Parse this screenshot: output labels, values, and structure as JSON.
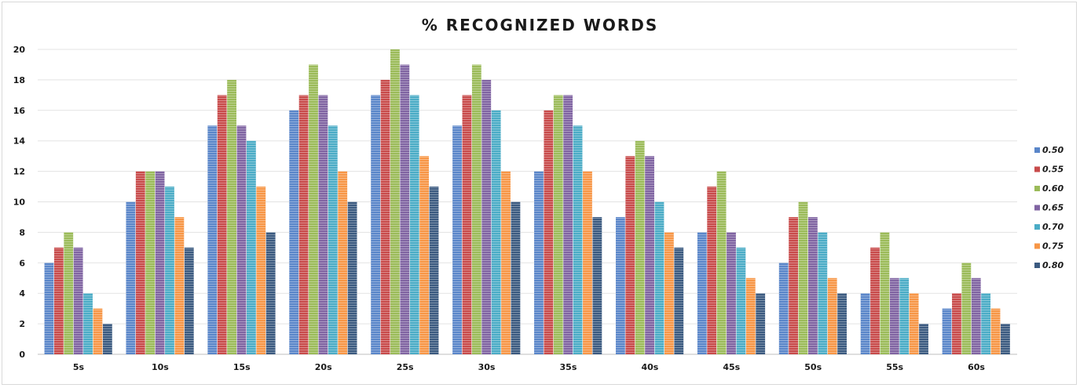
{
  "chart_data": {
    "type": "bar",
    "title": "% RECOGNIZED WORDS",
    "xlabel": "",
    "ylabel": "",
    "categories": [
      "5s",
      "10s",
      "15s",
      "20s",
      "25s",
      "30s",
      "35s",
      "40s",
      "45s",
      "50s",
      "55s",
      "60s"
    ],
    "ylim": [
      0,
      20
    ],
    "yticks": [
      "0",
      "2",
      "4",
      "6",
      "8",
      "10",
      "12",
      "14",
      "16",
      "18",
      "20"
    ],
    "grid": true,
    "legend_position": "right",
    "series": [
      {
        "name": "0.50",
        "color": "#5a86c9",
        "values": [
          6,
          10,
          15,
          16,
          17,
          15,
          12,
          9,
          8,
          6,
          4,
          3
        ]
      },
      {
        "name": "0.55",
        "color": "#c84b4b",
        "values": [
          7,
          12,
          17,
          17,
          18,
          17,
          16,
          13,
          11,
          9,
          7,
          4
        ]
      },
      {
        "name": "0.60",
        "color": "#9bbb59",
        "values": [
          8,
          12,
          18,
          19,
          20,
          19,
          17,
          14,
          12,
          10,
          8,
          6
        ]
      },
      {
        "name": "0.65",
        "color": "#8064a2",
        "values": [
          7,
          12,
          15,
          17,
          19,
          18,
          17,
          13,
          8,
          9,
          5,
          5
        ]
      },
      {
        "name": "0.70",
        "color": "#4bacc6",
        "values": [
          4,
          11,
          14,
          15,
          17,
          16,
          15,
          10,
          7,
          8,
          5,
          4
        ]
      },
      {
        "name": "0.75",
        "color": "#f79646",
        "values": [
          3,
          9,
          11,
          12,
          13,
          12,
          12,
          8,
          5,
          5,
          4,
          3
        ]
      },
      {
        "name": "0.80",
        "color": "#3b5a80",
        "values": [
          2,
          7,
          8,
          10,
          11,
          10,
          9,
          7,
          4,
          4,
          2,
          2
        ]
      }
    ]
  }
}
